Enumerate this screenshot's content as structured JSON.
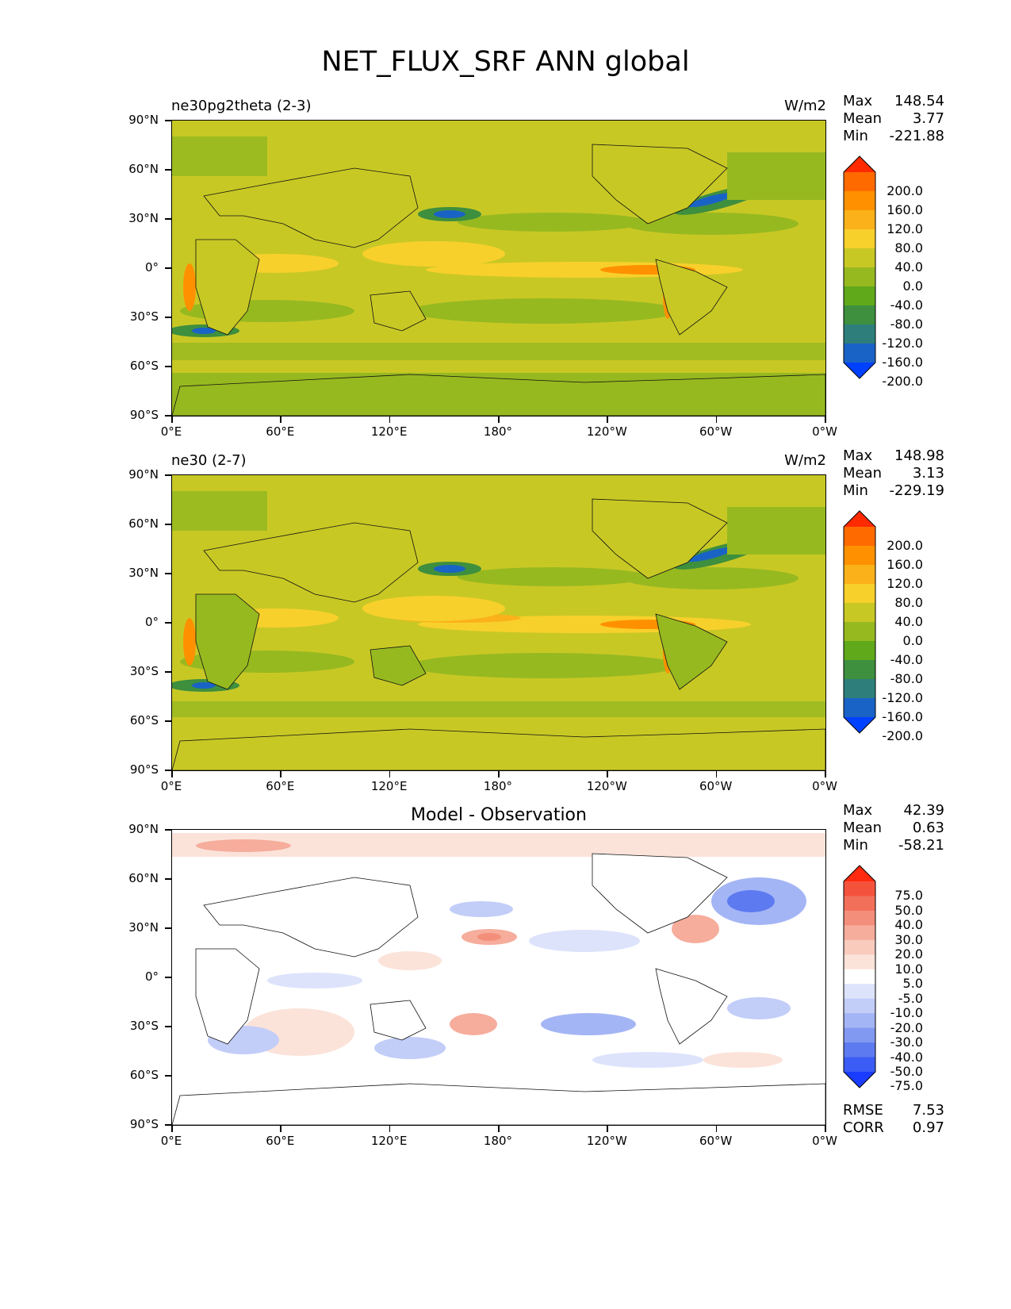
{
  "figure": {
    "title": "NET_FLUX_SRF ANN global"
  },
  "panels": [
    {
      "label_left": "ne30pg2theta (2-3)",
      "label_center": "",
      "units": "W/m2",
      "stats": {
        "Max": "148.54",
        "Mean": "3.77",
        "Min": "-221.88"
      },
      "colorbar_labels": [
        "200.0",
        "160.0",
        "120.0",
        "80.0",
        "40.0",
        "0.0",
        "-40.0",
        "-80.0",
        "-120.0",
        "-160.0",
        "-200.0"
      ],
      "colorbar_colors": [
        "#ff2a00",
        "#ff6a00",
        "#ff9100",
        "#fbb21a",
        "#f8d02b",
        "#c8c825",
        "#97b920",
        "#5fa91a",
        "#3e8f3e",
        "#2e7f7b",
        "#1a63c6",
        "#0041ff"
      ]
    },
    {
      "label_left": "ne30 (2-7)",
      "label_center": "",
      "units": "W/m2",
      "stats": {
        "Max": "148.98",
        "Mean": "3.13",
        "Min": "-229.19"
      },
      "colorbar_labels": [
        "200.0",
        "160.0",
        "120.0",
        "80.0",
        "40.0",
        "0.0",
        "-40.0",
        "-80.0",
        "-120.0",
        "-160.0",
        "-200.0"
      ],
      "colorbar_colors": [
        "#ff2a00",
        "#ff6a00",
        "#ff9100",
        "#fbb21a",
        "#f8d02b",
        "#c8c825",
        "#97b920",
        "#5fa91a",
        "#3e8f3e",
        "#2e7f7b",
        "#1a63c6",
        "#0041ff"
      ]
    },
    {
      "label_left": "",
      "label_center": "Model - Observation",
      "units": "",
      "stats": {
        "Max": "42.39",
        "Mean": "0.63",
        "Min": "-58.21"
      },
      "colorbar_labels": [
        "75.0",
        "50.0",
        "40.0",
        "30.0",
        "20.0",
        "10.0",
        "5.0",
        "-5.0",
        "-10.0",
        "-20.0",
        "-30.0",
        "-40.0",
        "-50.0",
        "-75.0"
      ],
      "colorbar_colors": [
        "#ff2a10",
        "#f5523c",
        "#f2705a",
        "#f38e7a",
        "#f6ad9c",
        "#f8cbbd",
        "#fbe3da",
        "#ffffff",
        "#dde3fb",
        "#c2cdf8",
        "#a4b5f5",
        "#8299f2",
        "#5d7af0",
        "#3b5df5",
        "#1a3cff"
      ],
      "rmse": "7.53",
      "corr": "0.97"
    }
  ],
  "axes": {
    "y_ticks": [
      "90°N",
      "60°N",
      "30°N",
      "0°",
      "30°S",
      "60°S",
      "90°S"
    ],
    "x_ticks": [
      "0°E",
      "60°E",
      "120°E",
      "180°",
      "120°W",
      "60°W",
      "0°W"
    ]
  },
  "stat_labels": {
    "max": "Max",
    "mean": "Mean",
    "min": "Min",
    "rmse": "RMSE",
    "corr": "CORR"
  },
  "colors": {
    "model_background": "#c8c825",
    "diff_background": "#ffffff",
    "coast": "#111111"
  }
}
